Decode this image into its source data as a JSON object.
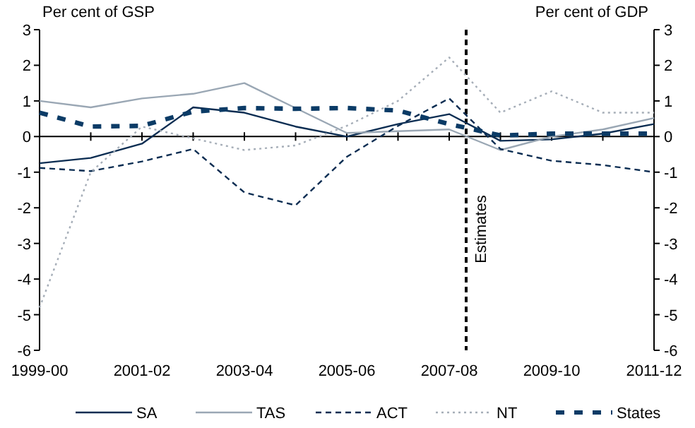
{
  "chart_data": {
    "type": "line",
    "ylabel": "Per cent of GSP",
    "y2label": "Per cent of GDP",
    "categories": [
      "1999-00",
      null,
      "2001-02",
      null,
      "2003-04",
      null,
      "2005-06",
      null,
      "2007-08",
      null,
      "2009-10",
      null,
      "2011-12"
    ],
    "series": [
      {
        "name": "SA",
        "color": "#0b2d52",
        "line_style": "solid",
        "values": [
          -0.75,
          -0.6,
          -0.2,
          0.82,
          0.67,
          0.28,
          0.0,
          0.35,
          0.63,
          -0.12,
          -0.08,
          0.08,
          0.35
        ]
      },
      {
        "name": "TAS",
        "color": "#9aa7b4",
        "line_style": "solid",
        "values": [
          1.0,
          0.82,
          1.07,
          1.2,
          1.5,
          0.8,
          0.1,
          0.15,
          0.2,
          -0.38,
          0.0,
          0.2,
          0.52
        ]
      },
      {
        "name": "ACT",
        "color": "#0b2d52",
        "line_style": "dashed",
        "values": [
          -0.88,
          -0.97,
          -0.7,
          -0.35,
          -1.57,
          -1.93,
          -0.57,
          0.3,
          1.07,
          -0.35,
          -0.68,
          -0.8,
          -1.0
        ]
      },
      {
        "name": "NT",
        "color": "#a6aeb8",
        "line_style": "dotted",
        "values": [
          -4.8,
          -1.0,
          0.28,
          -0.05,
          -0.38,
          -0.25,
          0.3,
          1.0,
          2.22,
          0.67,
          1.27,
          0.67,
          0.67
        ]
      },
      {
        "name": "States",
        "color": "#0b3b66",
        "line_style": "dashed",
        "values": [
          0.67,
          0.28,
          0.3,
          0.7,
          0.8,
          0.78,
          0.8,
          0.73,
          0.35,
          0.03,
          0.08,
          0.08,
          0.08
        ]
      }
    ],
    "ylim": [
      -6,
      3
    ],
    "yticks": [
      -6,
      -5,
      -4,
      -3,
      -2,
      -1,
      0,
      1,
      2,
      3
    ],
    "y2lim": [
      -6,
      3
    ],
    "y2ticks": [
      -6,
      -5,
      -4,
      -3,
      -2,
      -1,
      0,
      1,
      2,
      3
    ],
    "ref_lines": [
      {
        "axis": "x",
        "value": "2007-08",
        "label": "Estimates",
        "color": "#000000",
        "line_style": "dashed"
      }
    ],
    "legend": "bottom"
  }
}
